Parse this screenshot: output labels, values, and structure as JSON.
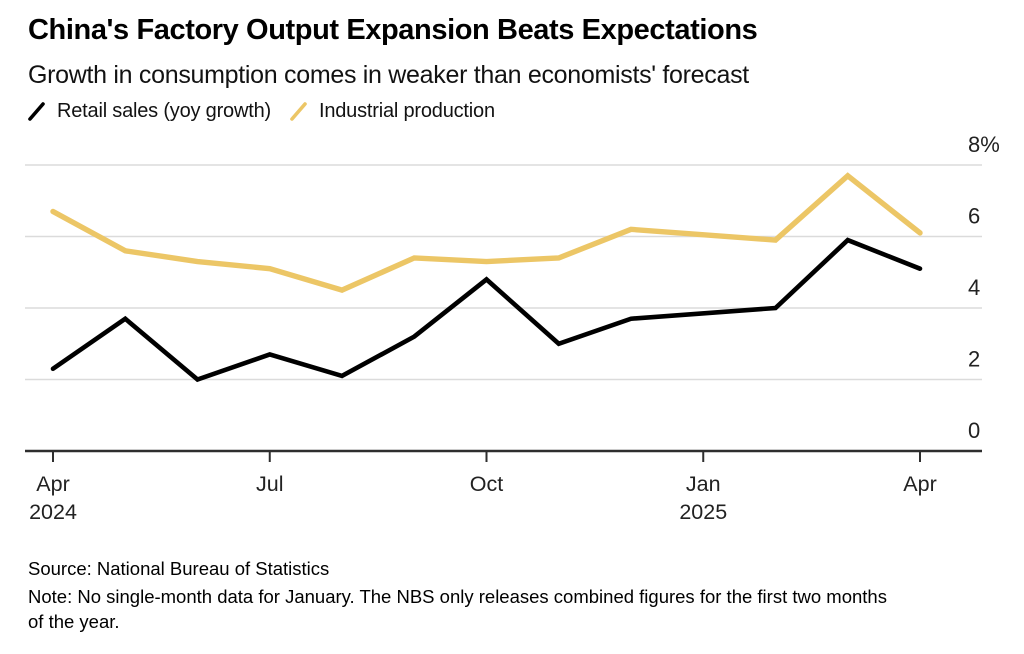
{
  "header": {
    "title": "China's Factory Output Expansion Beats Expectations",
    "subtitle": "Growth in consumption comes in weaker than economists' forecast"
  },
  "legend": [
    {
      "label": "Retail sales (yoy growth)",
      "color": "#000000"
    },
    {
      "label": "Industrial production",
      "color": "#ECC666"
    }
  ],
  "chart_data": {
    "type": "line",
    "title": "China's Factory Output Expansion Beats Expectations",
    "xlabel": "",
    "ylabel": "",
    "ylim": [
      0,
      8
    ],
    "y_unit": "%",
    "grid": "horizontal",
    "legend_position": "top-left",
    "categories": [
      "Apr 2024",
      "May 2024",
      "Jun 2024",
      "Jul 2024",
      "Aug 2024",
      "Sep 2024",
      "Oct 2024",
      "Nov 2024",
      "Dec 2024",
      "Feb 2025 (Jan-Feb combined)",
      "Mar 2025",
      "Apr 2025"
    ],
    "x_indices": [
      0,
      1,
      2,
      3,
      4,
      5,
      6,
      7,
      8,
      10,
      11,
      12
    ],
    "series": [
      {
        "name": "Retail sales (yoy growth)",
        "color": "#000000",
        "values": [
          2.3,
          3.7,
          2.0,
          2.7,
          2.1,
          3.2,
          4.8,
          3.0,
          3.7,
          4.0,
          5.9,
          5.1
        ]
      },
      {
        "name": "Industrial production",
        "color": "#ECC666",
        "values": [
          6.7,
          5.6,
          5.3,
          5.1,
          4.5,
          5.4,
          5.3,
          5.4,
          6.2,
          5.9,
          7.7,
          6.1
        ]
      }
    ],
    "y_ticks": [
      {
        "value": 0,
        "label": "0"
      },
      {
        "value": 2,
        "label": "2"
      },
      {
        "value": 4,
        "label": "4"
      },
      {
        "value": 6,
        "label": "6"
      },
      {
        "value": 8,
        "label": "8%"
      }
    ],
    "x_ticks": [
      {
        "index": 0,
        "label": "Apr",
        "sublabel": "2024"
      },
      {
        "index": 3,
        "label": "Jul",
        "sublabel": ""
      },
      {
        "index": 6,
        "label": "Oct",
        "sublabel": ""
      },
      {
        "index": 9,
        "label": "Jan",
        "sublabel": "2025"
      },
      {
        "index": 12,
        "label": "Apr",
        "sublabel": ""
      }
    ]
  },
  "footer": {
    "source": "Source: National Bureau of Statistics",
    "note_line1": "Note: No single-month data for January. The NBS only releases combined figures for the first two months",
    "note_line2": "of the year."
  },
  "colors": {
    "retail_line": "#000000",
    "industrial_line": "#ECC666",
    "gridline": "#DBDBDB",
    "axis": "#2E2E2E",
    "background": "#FFFFFF"
  }
}
